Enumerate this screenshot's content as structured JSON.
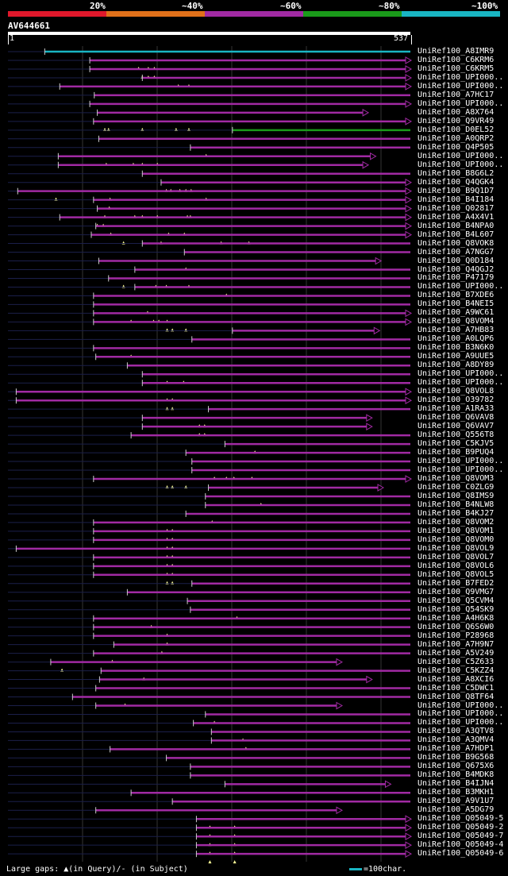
{
  "colors": {
    "red": "#e0182b",
    "orange": "#e0701a",
    "purple": "#a12aa3",
    "green": "#1a9a1a",
    "cyan": "#19b5c3",
    "grid": "#333333",
    "gap": "#1b1f4a",
    "triangle": "#ffff99"
  },
  "scale": {
    "labels": [
      "20%",
      "~40%",
      "~60%",
      "~80%",
      "~100%"
    ]
  },
  "query": {
    "name": "AV644661",
    "start_label": "1",
    "end_label": "537",
    "length": 537
  },
  "legend": {
    "gaps_text": "Large gaps: ▲(in Query)/- (in Subject)",
    "scale_text": "=100char."
  },
  "chart_data": {
    "type": "alignment",
    "title": "AV644661",
    "query_length": 537,
    "xlim": [
      1,
      537
    ],
    "hits": [
      {
        "name": "UniRef100_A8IMR9",
        "start": 50,
        "end": 537,
        "color": "cyan",
        "arrow": false,
        "ins": []
      },
      {
        "name": "UniRef100_C6KRM6",
        "start": 110,
        "end": 537,
        "color": "purple",
        "arrow": true,
        "ins": [
          175,
          188,
          196
        ]
      },
      {
        "name": "UniRef100_C6KRM5",
        "start": 110,
        "end": 537,
        "color": "purple",
        "arrow": true,
        "ins": [
          180,
          188,
          196
        ]
      },
      {
        "name": "UniRef100_UPI000..",
        "start": 180,
        "end": 537,
        "color": "purple",
        "arrow": true,
        "ins": [
          228,
          242
        ]
      },
      {
        "name": "UniRef100_UPI000..",
        "start": 70,
        "end": 537,
        "color": "purple",
        "arrow": true,
        "ins": []
      },
      {
        "name": "UniRef100_A7HC17",
        "start": 116,
        "end": 537,
        "color": "purple",
        "arrow": false,
        "ins": []
      },
      {
        "name": "UniRef100_UPI000..",
        "start": 110,
        "end": 537,
        "color": "purple",
        "arrow": true,
        "ins": []
      },
      {
        "name": "UniRef100_A8X764",
        "start": 120,
        "end": 480,
        "color": "purple",
        "arrow": true,
        "ins": []
      },
      {
        "name": "UniRef100_Q9VR49",
        "start": 115,
        "end": 537,
        "color": "purple",
        "arrow": true,
        "ins": [
          130,
          135,
          180,
          225,
          242
        ]
      },
      {
        "name": "UniRef100_D0EL52",
        "start": 300,
        "end": 537,
        "color": "green",
        "arrow": false,
        "ins": []
      },
      {
        "name": "UniRef100_A0QRP2",
        "start": 122,
        "end": 537,
        "color": "purple",
        "arrow": false,
        "ins": []
      },
      {
        "name": "UniRef100_Q4P505",
        "start": 244,
        "end": 537,
        "color": "purple",
        "arrow": false,
        "ins": [
          265
        ]
      },
      {
        "name": "UniRef100_UPI000..",
        "start": 68,
        "end": 490,
        "color": "purple",
        "arrow": true,
        "ins": [
          132,
          168,
          180,
          200
        ]
      },
      {
        "name": "UniRef100_UPI000..",
        "start": 68,
        "end": 480,
        "color": "purple",
        "arrow": true,
        "ins": []
      },
      {
        "name": "UniRef100_B8G6L2",
        "start": 180,
        "end": 537,
        "color": "purple",
        "arrow": false,
        "ins": []
      },
      {
        "name": "UniRef100_Q4QGK4",
        "start": 205,
        "end": 537,
        "color": "purple",
        "arrow": true,
        "ins": [
          212,
          218,
          230,
          238,
          245
        ]
      },
      {
        "name": "UniRef100_B9Q1D7",
        "start": 14,
        "end": 537,
        "color": "purple",
        "arrow": true,
        "ins": [
          65,
          137,
          265
        ]
      },
      {
        "name": "UniRef100_B4I184",
        "start": 115,
        "end": 537,
        "color": "purple",
        "arrow": true,
        "ins": [
          136
        ]
      },
      {
        "name": "UniRef100_Q02817",
        "start": 120,
        "end": 537,
        "color": "purple",
        "arrow": true,
        "ins": [
          130,
          170,
          180,
          200,
          240,
          244
        ]
      },
      {
        "name": "UniRef100_A4X4V1",
        "start": 70,
        "end": 537,
        "color": "purple",
        "arrow": true,
        "ins": [
          120,
          128
        ]
      },
      {
        "name": "UniRef100_B4NPA0",
        "start": 118,
        "end": 537,
        "color": "purple",
        "arrow": true,
        "ins": [
          138,
          215,
          236
        ]
      },
      {
        "name": "UniRef100_B4L607",
        "start": 112,
        "end": 537,
        "color": "purple",
        "arrow": true,
        "ins": [
          155,
          205,
          285,
          322
        ]
      },
      {
        "name": "UniRef100_Q8VOK8",
        "start": 180,
        "end": 537,
        "color": "purple",
        "arrow": false,
        "ins": []
      },
      {
        "name": "UniRef100_A7NGG7",
        "start": 236,
        "end": 537,
        "color": "purple",
        "arrow": false,
        "ins": []
      },
      {
        "name": "UniRef100_Q0D184",
        "start": 122,
        "end": 497,
        "color": "purple",
        "arrow": true,
        "ins": [
          238
        ]
      },
      {
        "name": "UniRef100_Q4QGJ2",
        "start": 170,
        "end": 537,
        "color": "purple",
        "arrow": false,
        "ins": []
      },
      {
        "name": "UniRef100_P47179",
        "start": 135,
        "end": 537,
        "color": "purple",
        "arrow": false,
        "ins": [
          155,
          198,
          212,
          242
        ]
      },
      {
        "name": "UniRef100_UPI000..",
        "start": 170,
        "end": 537,
        "color": "purple",
        "arrow": false,
        "ins": [
          292
        ]
      },
      {
        "name": "UniRef100_B7XDE6",
        "start": 115,
        "end": 537,
        "color": "purple",
        "arrow": false,
        "ins": []
      },
      {
        "name": "UniRef100_B4NEI5",
        "start": 115,
        "end": 537,
        "color": "purple",
        "arrow": false,
        "ins": [
          187
        ]
      },
      {
        "name": "UniRef100_A9WC61",
        "start": 115,
        "end": 537,
        "color": "purple",
        "arrow": true,
        "ins": [
          165,
          195,
          202,
          213
        ]
      },
      {
        "name": "UniRef100_Q8VOM4",
        "start": 115,
        "end": 537,
        "color": "purple",
        "arrow": true,
        "ins": [
          213,
          220,
          238
        ]
      },
      {
        "name": "UniRef100_A7HB83",
        "start": 300,
        "end": 495,
        "color": "purple",
        "arrow": true,
        "ins": []
      },
      {
        "name": "UniRef100_A0LQP6",
        "start": 246,
        "end": 537,
        "color": "purple",
        "arrow": false,
        "ins": []
      },
      {
        "name": "UniRef100_B3N6K0",
        "start": 115,
        "end": 537,
        "color": "purple",
        "arrow": false,
        "ins": [
          165
        ]
      },
      {
        "name": "UniRef100_A9UUE5",
        "start": 118,
        "end": 537,
        "color": "purple",
        "arrow": false,
        "ins": []
      },
      {
        "name": "UniRef100_A8DY89",
        "start": 160,
        "end": 537,
        "color": "purple",
        "arrow": false,
        "ins": []
      },
      {
        "name": "UniRef100_UPI000..",
        "start": 180,
        "end": 537,
        "color": "purple",
        "arrow": false,
        "ins": [
          213,
          235
        ]
      },
      {
        "name": "UniRef100_UPI000..",
        "start": 180,
        "end": 537,
        "color": "purple",
        "arrow": false,
        "ins": []
      },
      {
        "name": "UniRef100_Q8VOL8",
        "start": 12,
        "end": 537,
        "color": "purple",
        "arrow": true,
        "ins": [
          213,
          220
        ]
      },
      {
        "name": "UniRef100_O39782",
        "start": 12,
        "end": 537,
        "color": "purple",
        "arrow": true,
        "ins": [
          213,
          220
        ]
      },
      {
        "name": "UniRef100_A1RA33",
        "start": 268,
        "end": 537,
        "color": "purple",
        "arrow": false,
        "ins": []
      },
      {
        "name": "UniRef100_Q6VAV8",
        "start": 180,
        "end": 485,
        "color": "purple",
        "arrow": true,
        "ins": [
          256,
          263
        ]
      },
      {
        "name": "UniRef100_Q6VAV7",
        "start": 180,
        "end": 485,
        "color": "purple",
        "arrow": true,
        "ins": [
          256,
          263
        ]
      },
      {
        "name": "UniRef100_Q556T8",
        "start": 165,
        "end": 537,
        "color": "purple",
        "arrow": false,
        "ins": []
      },
      {
        "name": "UniRef100_C5KJV5",
        "start": 290,
        "end": 537,
        "color": "purple",
        "arrow": false,
        "ins": [
          330
        ]
      },
      {
        "name": "UniRef100_B9PUQ4",
        "start": 238,
        "end": 537,
        "color": "purple",
        "arrow": false,
        "ins": []
      },
      {
        "name": "UniRef100_UPI000..",
        "start": 246,
        "end": 537,
        "color": "purple",
        "arrow": false,
        "ins": []
      },
      {
        "name": "UniRef100_UPI000..",
        "start": 246,
        "end": 537,
        "color": "purple",
        "arrow": false,
        "ins": [
          276,
          292,
          302,
          326
        ]
      },
      {
        "name": "UniRef100_Q8VOM3",
        "start": 115,
        "end": 537,
        "color": "purple",
        "arrow": true,
        "ins": [
          213,
          220,
          238
        ]
      },
      {
        "name": "UniRef100_C0ZLG9",
        "start": 268,
        "end": 500,
        "color": "purple",
        "arrow": true,
        "ins": []
      },
      {
        "name": "UniRef100_Q8IMS9",
        "start": 264,
        "end": 537,
        "color": "purple",
        "arrow": false,
        "ins": [
          338
        ]
      },
      {
        "name": "UniRef100_B4NLW8",
        "start": 264,
        "end": 537,
        "color": "purple",
        "arrow": false,
        "ins": []
      },
      {
        "name": "UniRef100_B4KJ27",
        "start": 238,
        "end": 537,
        "color": "purple",
        "arrow": false,
        "ins": [
          273
        ]
      },
      {
        "name": "UniRef100_Q8VOM2",
        "start": 115,
        "end": 537,
        "color": "purple",
        "arrow": false,
        "ins": [
          213,
          220
        ]
      },
      {
        "name": "UniRef100_Q8VOM1",
        "start": 115,
        "end": 537,
        "color": "purple",
        "arrow": false,
        "ins": [
          213,
          220
        ]
      },
      {
        "name": "UniRef100_Q8VOM0",
        "start": 115,
        "end": 537,
        "color": "purple",
        "arrow": false,
        "ins": [
          213,
          220
        ]
      },
      {
        "name": "UniRef100_Q8VOL9",
        "start": 12,
        "end": 537,
        "color": "purple",
        "arrow": false,
        "ins": [
          213,
          220
        ]
      },
      {
        "name": "UniRef100_Q8VOL7",
        "start": 115,
        "end": 537,
        "color": "purple",
        "arrow": false,
        "ins": [
          213,
          220
        ]
      },
      {
        "name": "UniRef100_Q8VOL6",
        "start": 115,
        "end": 537,
        "color": "purple",
        "arrow": false,
        "ins": [
          213,
          220
        ]
      },
      {
        "name": "UniRef100_Q8VOL5",
        "start": 115,
        "end": 537,
        "color": "purple",
        "arrow": false,
        "ins": [
          213,
          220
        ]
      },
      {
        "name": "UniRef100_B7FED2",
        "start": 246,
        "end": 537,
        "color": "purple",
        "arrow": false,
        "ins": []
      },
      {
        "name": "UniRef100_Q9VMG7",
        "start": 160,
        "end": 537,
        "color": "purple",
        "arrow": false,
        "ins": []
      },
      {
        "name": "UniRef100_Q5CVM4",
        "start": 240,
        "end": 537,
        "color": "purple",
        "arrow": false,
        "ins": []
      },
      {
        "name": "UniRef100_Q54SK9",
        "start": 244,
        "end": 537,
        "color": "purple",
        "arrow": false,
        "ins": [
          306
        ]
      },
      {
        "name": "UniRef100_A4H6K8",
        "start": 115,
        "end": 537,
        "color": "purple",
        "arrow": false,
        "ins": [
          192
        ]
      },
      {
        "name": "UniRef100_Q6S6W0",
        "start": 115,
        "end": 537,
        "color": "purple",
        "arrow": false,
        "ins": [
          213
        ]
      },
      {
        "name": "UniRef100_P28968",
        "start": 115,
        "end": 537,
        "color": "purple",
        "arrow": false,
        "ins": [
          213
        ]
      },
      {
        "name": "UniRef100_A7H9N7",
        "start": 142,
        "end": 537,
        "color": "purple",
        "arrow": false,
        "ins": [
          206
        ]
      },
      {
        "name": "UniRef100_A5V249",
        "start": 115,
        "end": 537,
        "color": "purple",
        "arrow": false,
        "ins": [
          140
        ]
      },
      {
        "name": "UniRef100_C5Z633",
        "start": 58,
        "end": 445,
        "color": "purple",
        "arrow": true,
        "ins": [
          73
        ]
      },
      {
        "name": "UniRef100_C5KZZ4",
        "start": 125,
        "end": 537,
        "color": "purple",
        "arrow": false,
        "ins": [
          182
        ]
      },
      {
        "name": "UniRef100_A8XCI6",
        "start": 123,
        "end": 485,
        "color": "purple",
        "arrow": true,
        "ins": []
      },
      {
        "name": "UniRef100_C5DWC1",
        "start": 118,
        "end": 537,
        "color": "purple",
        "arrow": false,
        "ins": []
      },
      {
        "name": "UniRef100_Q8TF64",
        "start": 87,
        "end": 537,
        "color": "purple",
        "arrow": false,
        "ins": [
          157
        ]
      },
      {
        "name": "UniRef100_UPI000..",
        "start": 118,
        "end": 445,
        "color": "purple",
        "arrow": true,
        "ins": []
      },
      {
        "name": "UniRef100_UPI000..",
        "start": 264,
        "end": 537,
        "color": "purple",
        "arrow": false,
        "ins": [
          276
        ]
      },
      {
        "name": "UniRef100_UPI000..",
        "start": 248,
        "end": 537,
        "color": "purple",
        "arrow": false,
        "ins": []
      },
      {
        "name": "UniRef100_A3QTV8",
        "start": 272,
        "end": 537,
        "color": "purple",
        "arrow": false,
        "ins": [
          314
        ]
      },
      {
        "name": "UniRef100_A3QMV4",
        "start": 272,
        "end": 537,
        "color": "purple",
        "arrow": false,
        "ins": [
          318
        ]
      },
      {
        "name": "UniRef100_A7HDP1",
        "start": 137,
        "end": 537,
        "color": "purple",
        "arrow": false,
        "ins": []
      },
      {
        "name": "UniRef100_B9G568",
        "start": 212,
        "end": 537,
        "color": "purple",
        "arrow": false,
        "ins": []
      },
      {
        "name": "UniRef100_Q675X6",
        "start": 244,
        "end": 537,
        "color": "purple",
        "arrow": false,
        "ins": []
      },
      {
        "name": "UniRef100_B4MDK8",
        "start": 244,
        "end": 537,
        "color": "purple",
        "arrow": false,
        "ins": []
      },
      {
        "name": "UniRef100_B4IJN4",
        "start": 290,
        "end": 510,
        "color": "purple",
        "arrow": true,
        "ins": []
      },
      {
        "name": "UniRef100_B3MKH1",
        "start": 165,
        "end": 537,
        "color": "purple",
        "arrow": false,
        "ins": []
      },
      {
        "name": "UniRef100_A9V1U7",
        "start": 220,
        "end": 537,
        "color": "purple",
        "arrow": false,
        "ins": []
      },
      {
        "name": "UniRef100_A5DG79",
        "start": 118,
        "end": 445,
        "color": "purple",
        "arrow": true,
        "ins": []
      },
      {
        "name": "UniRef100_Q05049-5",
        "start": 252,
        "end": 537,
        "color": "purple",
        "arrow": true,
        "ins": [
          270,
          303
        ]
      },
      {
        "name": "UniRef100_Q05049-2",
        "start": 252,
        "end": 537,
        "color": "purple",
        "arrow": true,
        "ins": [
          270,
          303
        ]
      },
      {
        "name": "UniRef100_Q05049-7",
        "start": 252,
        "end": 537,
        "color": "purple",
        "arrow": true,
        "ins": [
          270,
          303
        ]
      },
      {
        "name": "UniRef100_Q05049-4",
        "start": 252,
        "end": 537,
        "color": "purple",
        "arrow": true,
        "ins": [
          270,
          303
        ]
      },
      {
        "name": "UniRef100_Q05049-6",
        "start": 252,
        "end": 537,
        "color": "purple",
        "arrow": true,
        "ins": [
          270,
          303
        ]
      }
    ]
  }
}
